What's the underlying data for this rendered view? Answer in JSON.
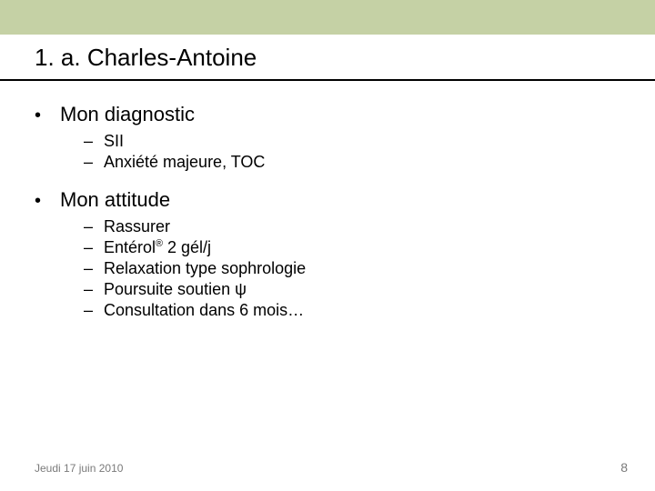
{
  "colors": {
    "header_band": "#c5d1a5",
    "title_rule": "#000000",
    "text": "#000000",
    "footer_text": "#7a7a7a",
    "background": "#ffffff"
  },
  "typography": {
    "title_fontsize_pt": 20,
    "lvl1_fontsize_pt": 17,
    "lvl2_fontsize_pt": 14,
    "footer_fontsize_pt": 9,
    "font_family": "Arial"
  },
  "title": "1. a. Charles-Antoine",
  "sections": [
    {
      "heading": "Mon diagnostic",
      "items": [
        {
          "text": "SII"
        },
        {
          "text": "Anxiété majeure, TOC"
        }
      ]
    },
    {
      "heading": "Mon attitude",
      "items": [
        {
          "text": "Rassurer"
        },
        {
          "prefix": "Entérol",
          "sup": "®",
          "suffix": " 2 gél/j"
        },
        {
          "text": "Relaxation type sophrologie"
        },
        {
          "prefix": "Poursuite soutien ",
          "psi": "ψ"
        },
        {
          "text": "Consultation dans 6 mois…"
        }
      ]
    }
  ],
  "footer": {
    "date": "Jeudi 17 juin 2010",
    "page": "8"
  }
}
